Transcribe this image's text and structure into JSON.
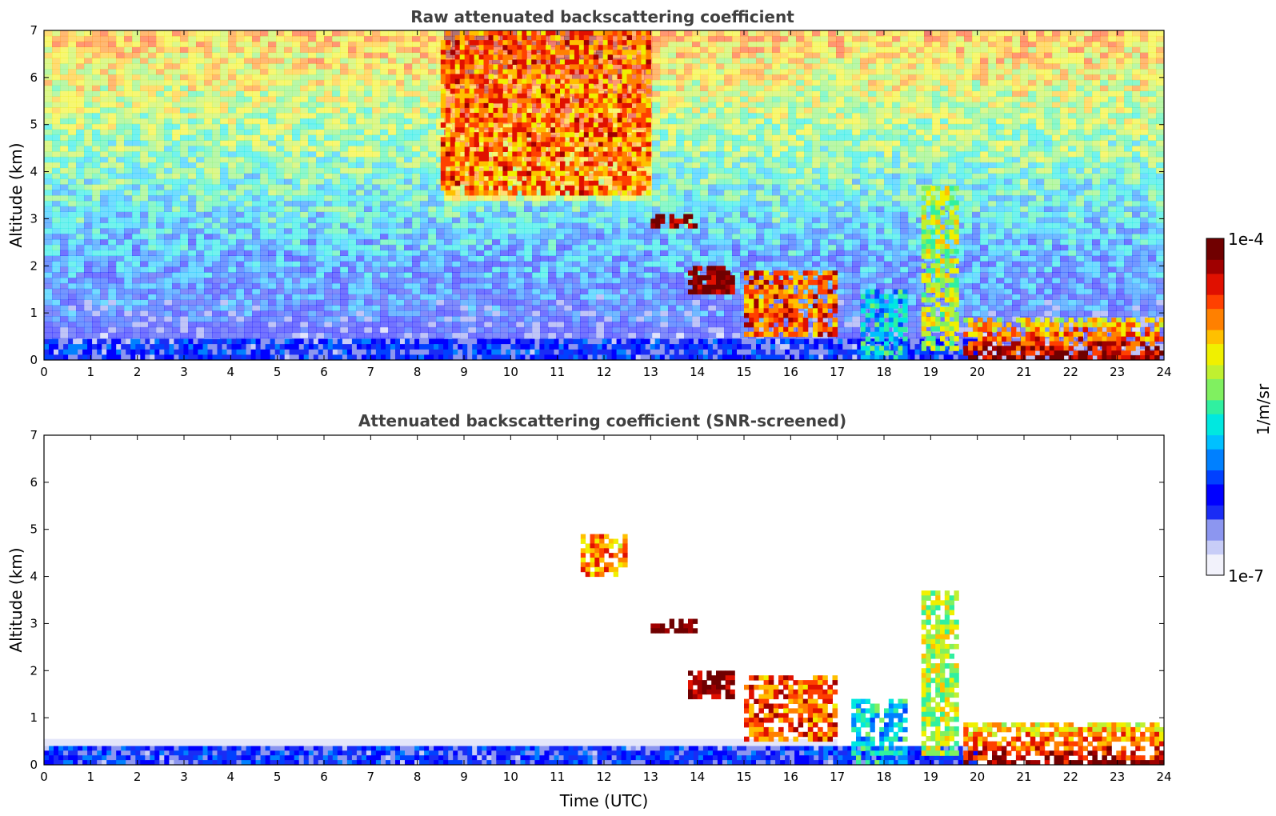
{
  "colors": {
    "colormap": [
      "#f2f2fb",
      "#c8cdf7",
      "#8c96f0",
      "#1a2cf5",
      "#0000ff",
      "#0040ff",
      "#0080ff",
      "#00c0ff",
      "#00e8e0",
      "#30f0a0",
      "#80f060",
      "#c0f030",
      "#f0f000",
      "#ffc000",
      "#ff8000",
      "#ff4000",
      "#e01000",
      "#a00000",
      "#700000"
    ],
    "frame": "#000000",
    "title": "#404040"
  },
  "colorbar": {
    "max_label": "1e-4",
    "min_label": "1e-7",
    "unit_label": "1/m/sr",
    "scale": "log"
  },
  "chart_data": [
    {
      "type": "heatmap",
      "title": "Raw attenuated backscattering coefficient",
      "xlabel": "",
      "ylabel": "Altitude (km)",
      "xlim": [
        0,
        24
      ],
      "ylim": [
        0,
        7
      ],
      "xticks": [
        "0",
        "1",
        "2",
        "3",
        "4",
        "5",
        "6",
        "7",
        "8",
        "9",
        "10",
        "11",
        "12",
        "13",
        "14",
        "15",
        "16",
        "17",
        "18",
        "19",
        "20",
        "21",
        "22",
        "23",
        "24"
      ],
      "yticks": [
        "0",
        "1",
        "2",
        "3",
        "4",
        "5",
        "6",
        "7"
      ],
      "features": [
        {
          "x": [
            0,
            20
          ],
          "y": [
            0,
            0.45
          ],
          "value": "blue"
        },
        {
          "x": [
            13.0,
            14.0
          ],
          "y": [
            2.8,
            3.1
          ],
          "value": "dark-red"
        },
        {
          "x": [
            13.8,
            14.8
          ],
          "y": [
            1.4,
            2.0
          ],
          "value": "dark-red"
        },
        {
          "x": [
            15.0,
            17.0
          ],
          "y": [
            0.5,
            1.9
          ],
          "value": "red-cyan"
        },
        {
          "x": [
            17.5,
            18.5
          ],
          "y": [
            0,
            1.5
          ],
          "value": "cyan"
        },
        {
          "x": [
            18.8,
            19.6
          ],
          "y": [
            0.2,
            3.7
          ],
          "value": "cyan-red"
        },
        {
          "x": [
            19.7,
            24
          ],
          "y": [
            0,
            0.9
          ],
          "value": "orange-red"
        },
        {
          "x": [
            8.5,
            13
          ],
          "y": [
            3.5,
            7
          ],
          "value": "red-noise"
        }
      ]
    },
    {
      "type": "heatmap",
      "title": "Attenuated backscattering coefficient (SNR-screened)",
      "xlabel": "Time (UTC)",
      "ylabel": "Altitude (km)",
      "xlim": [
        0,
        24
      ],
      "ylim": [
        0,
        7
      ],
      "xticks": [
        "0",
        "1",
        "2",
        "3",
        "4",
        "5",
        "6",
        "7",
        "8",
        "9",
        "10",
        "11",
        "12",
        "13",
        "14",
        "15",
        "16",
        "17",
        "18",
        "19",
        "20",
        "21",
        "22",
        "23",
        "24"
      ],
      "yticks": [
        "0",
        "1",
        "2",
        "3",
        "4",
        "5",
        "6",
        "7"
      ],
      "features": [
        {
          "x": [
            0,
            20
          ],
          "y": [
            0,
            0.4
          ],
          "value": "blue"
        },
        {
          "x": [
            11.5,
            12.5
          ],
          "y": [
            4.0,
            4.9
          ],
          "value": "orange"
        },
        {
          "x": [
            13.0,
            14.0
          ],
          "y": [
            2.8,
            3.1
          ],
          "value": "dark-red"
        },
        {
          "x": [
            13.8,
            14.8
          ],
          "y": [
            1.4,
            2.0
          ],
          "value": "dark-red"
        },
        {
          "x": [
            15.0,
            17.0
          ],
          "y": [
            0.5,
            1.9
          ],
          "value": "red-cyan"
        },
        {
          "x": [
            17.3,
            18.5
          ],
          "y": [
            0,
            1.4
          ],
          "value": "cyan"
        },
        {
          "x": [
            18.8,
            19.6
          ],
          "y": [
            0.2,
            3.7
          ],
          "value": "cyan-red"
        },
        {
          "x": [
            19.7,
            24
          ],
          "y": [
            0,
            0.9
          ],
          "value": "orange-red"
        }
      ]
    }
  ]
}
